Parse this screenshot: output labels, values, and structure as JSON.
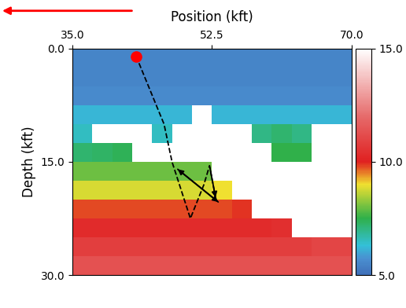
{
  "chart_data": {
    "type": "heatmap",
    "xlabel": "Position (kft)",
    "ylabel": "Depth (kft)",
    "xlim": [
      35.0,
      70.0
    ],
    "ylim": [
      30.0,
      0.0
    ],
    "xticks": [
      {
        "value": 35.0,
        "label": "35.0"
      },
      {
        "value": 52.5,
        "label": "52.5"
      },
      {
        "value": 70.0,
        "label": "70.0"
      }
    ],
    "yticks": [
      {
        "value": 0.0,
        "label": "0.0"
      },
      {
        "value": 15.0,
        "label": "15.0"
      },
      {
        "value": 30.0,
        "label": "30.0"
      }
    ],
    "colorbar_range": [
      5.0,
      15.0
    ],
    "colorbar_ticks": [
      {
        "value": 5.0,
        "label": "5.0"
      },
      {
        "value": 10.0,
        "label": "10.0"
      },
      {
        "value": 15.0,
        "label": "15.0"
      }
    ],
    "grid": false,
    "cells": [
      [
        5.5,
        5.5,
        5.5,
        5.5,
        5.5,
        5.5,
        5.5,
        5.5,
        5.5,
        5.5,
        5.5,
        5.5,
        5.5,
        5.5
      ],
      [
        5.5,
        5.5,
        5.5,
        5.5,
        5.5,
        5.5,
        5.5,
        5.5,
        5.5,
        5.5,
        5.5,
        5.5,
        5.5,
        5.5
      ],
      [
        5.6,
        5.6,
        5.6,
        5.6,
        5.6,
        5.6,
        5.6,
        5.6,
        5.6,
        5.6,
        5.6,
        5.6,
        5.6,
        5.6
      ],
      [
        6.2,
        6.2,
        6.2,
        6.2,
        6.2,
        6.2,
        15.0,
        6.2,
        6.2,
        6.2,
        6.2,
        6.2,
        6.2,
        6.2
      ],
      [
        6.5,
        15.0,
        15.0,
        15.0,
        6.5,
        15.0,
        15.0,
        15.0,
        15.0,
        7.0,
        7.2,
        7.0,
        15.0,
        15.0
      ],
      [
        7.2,
        7.3,
        7.4,
        15.0,
        15.0,
        15.0,
        15.0,
        15.0,
        15.0,
        15.0,
        7.5,
        7.5,
        15.0,
        15.0
      ],
      [
        8.0,
        8.0,
        8.0,
        8.0,
        8.0,
        8.0,
        8.0,
        15.0,
        15.0,
        15.0,
        15.0,
        15.0,
        15.0,
        15.0
      ],
      [
        8.8,
        8.8,
        8.8,
        8.8,
        8.8,
        8.8,
        8.8,
        9.0,
        15.0,
        15.0,
        15.0,
        15.0,
        15.0,
        15.0
      ],
      [
        9.8,
        9.8,
        9.8,
        9.8,
        9.8,
        9.8,
        9.8,
        9.8,
        9.9,
        15.0,
        15.0,
        15.0,
        15.0,
        15.0
      ],
      [
        10.3,
        10.3,
        10.3,
        10.3,
        10.3,
        10.3,
        10.3,
        10.3,
        10.3,
        10.3,
        10.4,
        15.0,
        15.0,
        15.0
      ],
      [
        10.8,
        10.8,
        10.8,
        10.8,
        10.8,
        10.8,
        10.8,
        10.8,
        10.8,
        10.8,
        10.8,
        10.8,
        11.0,
        11.0
      ],
      [
        11.3,
        11.3,
        11.3,
        11.3,
        11.3,
        11.3,
        11.3,
        11.3,
        11.3,
        11.3,
        11.3,
        11.3,
        11.3,
        11.3
      ]
    ],
    "source": [
      43.0,
      1.0
    ],
    "rays": [
      [
        [
          43.0,
          1.0
        ],
        [
          46.5,
          10.0
        ],
        [
          47.5,
          15.0
        ],
        [
          49.8,
          22.5
        ],
        [
          51.5,
          18.0
        ],
        [
          52.2,
          15.5
        ],
        [
          53.0,
          20.0
        ]
      ]
    ],
    "arrows": [
      [
        [
          48.0,
          15.8
        ],
        [
          53.5,
          20.5
        ]
      ],
      [
        [
          53.5,
          20.5
        ],
        [
          48.0,
          15.8
        ]
      ],
      [
        [
          52.2,
          15.5
        ],
        [
          53.0,
          20.0
        ]
      ]
    ]
  }
}
